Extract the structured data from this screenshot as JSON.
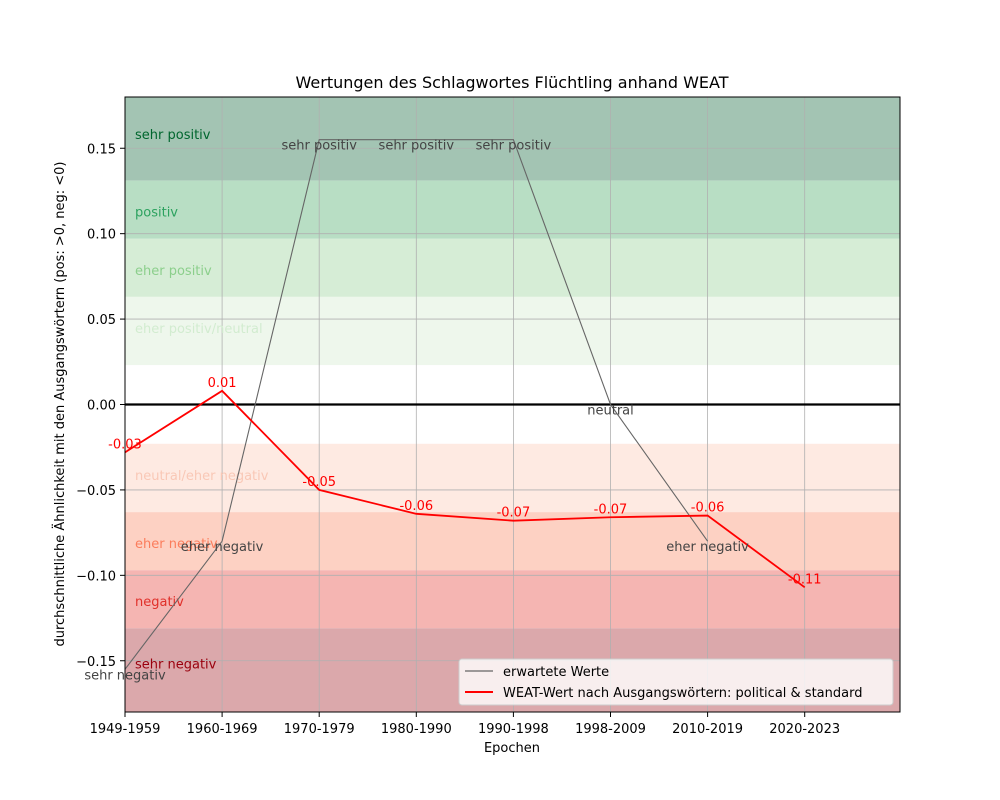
{
  "chart_data": {
    "type": "line",
    "title": "Wertungen des Schlagwortes Flüchtling anhand WEAT",
    "xlabel": "Epochen",
    "ylabel": "durchschnittliche Ähnlichkeit mit den Ausgangswörtern (pos: >0, neg: <0)",
    "categories": [
      "1949-1959",
      "1960-1969",
      "1970-1979",
      "1980-1990",
      "1990-1998",
      "1998-2009",
      "2010-2019",
      "2020-2023"
    ],
    "ylim": [
      -0.18,
      0.18
    ],
    "yticks": [
      -0.15,
      -0.1,
      -0.05,
      0.0,
      0.05,
      0.1,
      0.15
    ],
    "ytick_labels": [
      "−0.15",
      "−0.10",
      "−0.05",
      "0.00",
      "0.05",
      "0.10",
      "0.15"
    ],
    "grid": true,
    "legend_position": "lower-right",
    "bands": [
      {
        "label": "sehr positiv",
        "from": 0.131,
        "to": 0.18,
        "fill": "#a3c4b3",
        "text_color": "#00662e"
      },
      {
        "label": "positiv",
        "from": 0.097,
        "to": 0.131,
        "fill": "#b8dec4",
        "text_color": "#2ca25f"
      },
      {
        "label": "eher positiv",
        "from": 0.063,
        "to": 0.097,
        "fill": "#d6edd6",
        "text_color": "#8ccf8c"
      },
      {
        "label": "eher positiv/neutral",
        "from": 0.023,
        "to": 0.063,
        "fill": "#eef7ec",
        "text_color": "#d2ecd0"
      },
      {
        "label": "neutral",
        "from": -0.023,
        "to": 0.023,
        "fill": "#ffffff",
        "text_color": "#ffffff"
      },
      {
        "label": "neutral/eher negativ",
        "from": -0.063,
        "to": -0.023,
        "fill": "#feeae2",
        "text_color": "#f9c8b6"
      },
      {
        "label": "eher negativ",
        "from": -0.097,
        "to": -0.063,
        "fill": "#fdd1c3",
        "text_color": "#fb7d5c"
      },
      {
        "label": "negativ",
        "from": -0.131,
        "to": -0.097,
        "fill": "#f5b5b2",
        "text_color": "#e0302a"
      },
      {
        "label": "sehr negativ",
        "from": -0.18,
        "to": -0.131,
        "fill": "#dba8ab",
        "text_color": "#99000d"
      }
    ],
    "series": [
      {
        "name": "erwartete Werte",
        "color": "#666666",
        "values": [
          -0.155,
          -0.08,
          0.155,
          0.155,
          0.155,
          0.0,
          -0.08,
          null
        ],
        "point_labels": [
          "sehr negativ",
          "eher negativ",
          "sehr positiv",
          "sehr positiv",
          "sehr positiv",
          "neutral",
          "eher negativ",
          ""
        ]
      },
      {
        "name": "WEAT-Wert nach Ausgangswörtern: political & standard",
        "color": "#ff0000",
        "values": [
          -0.028,
          0.008,
          -0.05,
          -0.064,
          -0.068,
          -0.066,
          -0.065,
          -0.107
        ],
        "point_labels": [
          "-0.03",
          "0.01",
          "-0.05",
          "-0.06",
          "-0.07",
          "-0.07",
          "-0.06",
          "-0.11"
        ]
      }
    ]
  }
}
